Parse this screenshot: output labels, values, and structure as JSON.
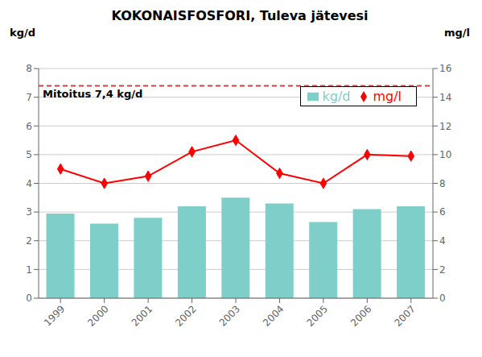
{
  "chart_data": {
    "type": "bar",
    "title": "KOKONAISFOSFORI,  Tuleva jätevesi",
    "categories": [
      "1999",
      "2000",
      "2001",
      "2002",
      "2003",
      "2004",
      "2005",
      "2006",
      "2007"
    ],
    "series": [
      {
        "name": "kg/d",
        "type": "bar",
        "color": "#7ececa",
        "values": [
          2.95,
          2.6,
          2.8,
          3.2,
          3.5,
          3.3,
          2.65,
          3.1,
          3.2
        ]
      },
      {
        "name": "mg/l",
        "type": "line",
        "axis": "y2",
        "color": "#ff0000",
        "marker": "diamond",
        "values": [
          9.0,
          8.0,
          8.5,
          10.2,
          11.0,
          8.7,
          8.0,
          10.0,
          9.9
        ]
      }
    ],
    "ylabel": "kg/d",
    "y2label": "mg/l",
    "ylim": [
      0,
      8
    ],
    "yticks": [
      0,
      1,
      2,
      3,
      4,
      5,
      6,
      7,
      8
    ],
    "y2lim": [
      0,
      16
    ],
    "y2ticks": [
      0,
      2,
      4,
      6,
      8,
      10,
      12,
      14,
      16
    ],
    "grid": true,
    "legend": "upper right",
    "annotations": [
      {
        "text": "Mitoitus 7,4 kg/d",
        "y": 7.4,
        "color": "#cc4444",
        "line_style": "dashed"
      }
    ]
  }
}
